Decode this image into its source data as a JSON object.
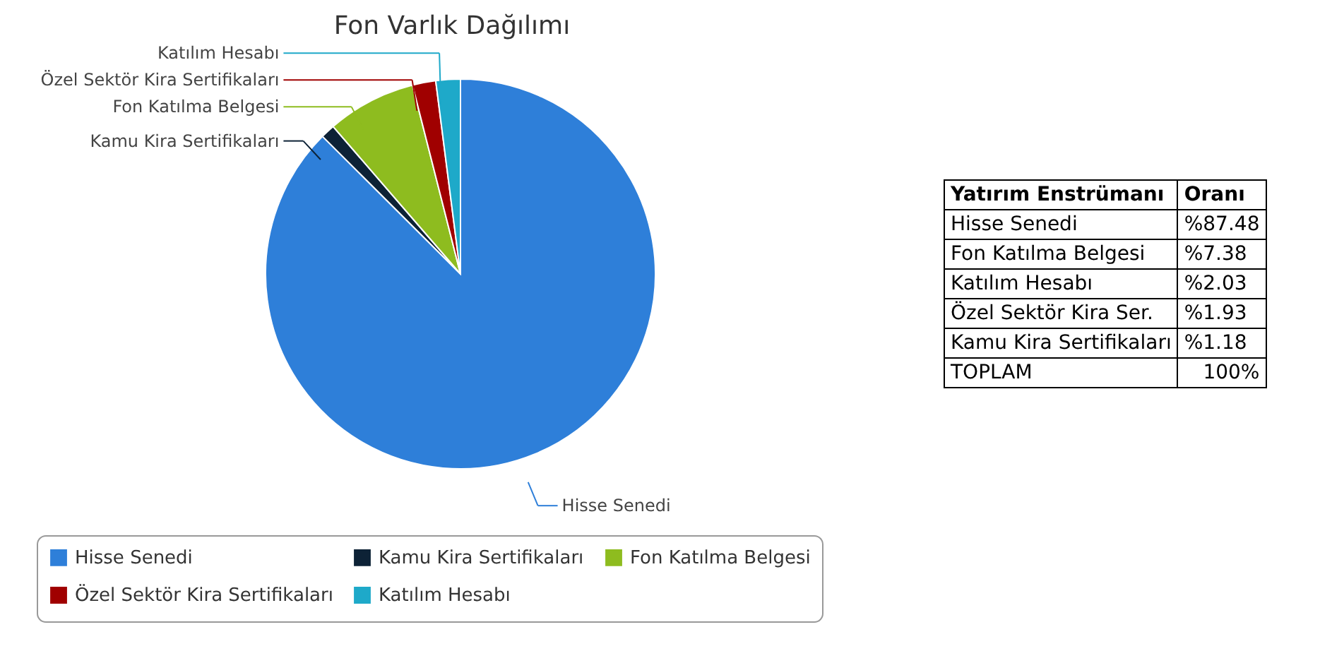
{
  "chart_data": [
    {
      "type": "pie",
      "title": "Fon Varlık Dağılımı",
      "categories": [
        "Hisse Senedi",
        "Kamu Kira Sertifikaları",
        "Fon Katılma Belgesi",
        "Özel Sektör Kira Sertifikaları",
        "Katılım Hesabı"
      ],
      "values": [
        87.48,
        1.18,
        7.38,
        1.93,
        2.03
      ],
      "colors": [
        "#2e7fd9",
        "#0d2236",
        "#8ebc1f",
        "#a00000",
        "#1ea9c9"
      ],
      "legend": "bottom"
    },
    {
      "type": "other",
      "xlabel": "Yatırım Enstrümanı",
      "ylabel": "Oranı",
      "categories": [
        "Hisse Senedi",
        "Fon Katılma Belgesi",
        "Katılım Hesabı",
        "Özel Sektör Kira Ser.",
        "Kamu Kira Sertifikaları",
        "TOPLAM"
      ],
      "values": [
        87.48,
        7.38,
        2.03,
        1.93,
        1.18,
        100
      ],
      "value_labels": [
        "%87.48",
        "%7.38",
        "%2.03",
        "%1.93",
        "%1.18",
        "100%"
      ]
    }
  ]
}
